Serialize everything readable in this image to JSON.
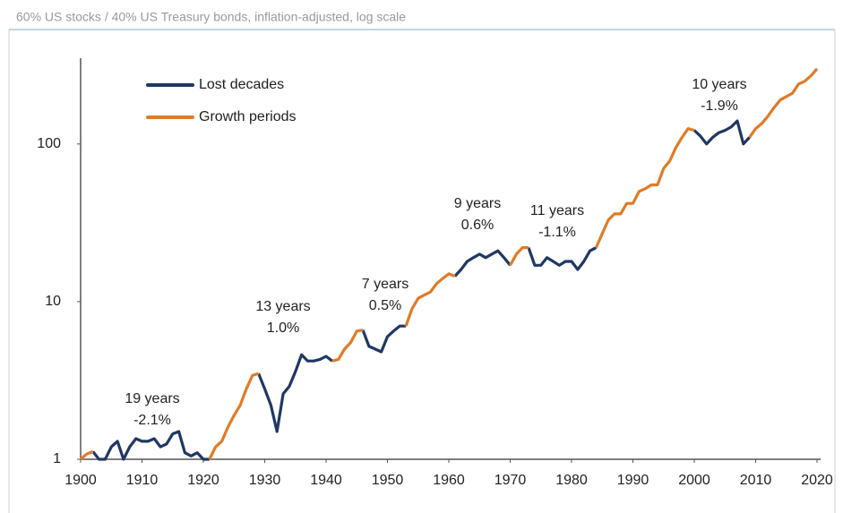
{
  "chart_data": {
    "type": "line",
    "title": "60% US stocks / 40% US Treasury bonds, inflation-adjusted, log scale",
    "log_scale": true,
    "grid": false,
    "legend": "upper-left",
    "xlim": [
      1900,
      2020
    ],
    "ylim": [
      1,
      350
    ],
    "xticks": [
      1900,
      1910,
      1920,
      1930,
      1940,
      1950,
      1960,
      1970,
      1980,
      1990,
      2000,
      2010,
      2020
    ],
    "yticks": [
      1,
      10,
      100
    ],
    "x": [
      1900,
      1901,
      1902,
      1903,
      1904,
      1905,
      1906,
      1907,
      1908,
      1909,
      1910,
      1911,
      1912,
      1913,
      1914,
      1915,
      1916,
      1917,
      1918,
      1919,
      1920,
      1921,
      1922,
      1923,
      1924,
      1925,
      1926,
      1927,
      1928,
      1929,
      1930,
      1931,
      1932,
      1933,
      1934,
      1935,
      1936,
      1937,
      1938,
      1939,
      1940,
      1941,
      1942,
      1943,
      1944,
      1945,
      1946,
      1947,
      1948,
      1949,
      1950,
      1951,
      1952,
      1953,
      1954,
      1955,
      1956,
      1957,
      1958,
      1959,
      1960,
      1961,
      1962,
      1963,
      1964,
      1965,
      1966,
      1967,
      1968,
      1969,
      1970,
      1971,
      1972,
      1973,
      1974,
      1975,
      1976,
      1977,
      1978,
      1979,
      1980,
      1981,
      1982,
      1983,
      1984,
      1985,
      1986,
      1987,
      1988,
      1989,
      1990,
      1991,
      1992,
      1993,
      1994,
      1995,
      1996,
      1997,
      1998,
      1999,
      2000,
      2001,
      2002,
      2003,
      2004,
      2005,
      2006,
      2007,
      2008,
      2009,
      2010,
      2011,
      2012,
      2013,
      2014,
      2015,
      2016,
      2017,
      2018,
      2019,
      2020
    ],
    "series": [
      {
        "name": "Lost decades",
        "color": "#1f3864",
        "values": [
          null,
          null,
          1.12,
          1.0,
          1.0,
          1.2,
          1.3,
          1.0,
          1.2,
          1.35,
          1.3,
          1.3,
          1.35,
          1.2,
          1.25,
          1.45,
          1.5,
          1.1,
          1.05,
          1.1,
          1.0,
          1.0,
          null,
          null,
          null,
          null,
          null,
          null,
          null,
          3.5,
          2.8,
          2.2,
          1.5,
          2.6,
          2.9,
          3.6,
          4.6,
          4.2,
          4.2,
          4.3,
          4.5,
          4.2,
          null,
          null,
          null,
          null,
          6.6,
          5.2,
          5.0,
          4.8,
          6.0,
          6.5,
          7.0,
          7.0,
          null,
          null,
          null,
          null,
          null,
          null,
          null,
          14.5,
          16,
          18,
          19,
          20,
          19,
          20,
          21,
          19,
          17,
          null,
          null,
          22,
          17,
          17,
          19,
          18,
          17,
          18,
          18,
          16,
          18,
          21,
          22,
          null,
          null,
          null,
          null,
          null,
          null,
          null,
          null,
          null,
          null,
          null,
          null,
          null,
          null,
          null,
          122,
          112,
          100,
          110,
          118,
          122,
          128,
          140,
          100,
          110,
          null,
          null,
          null,
          null,
          null,
          null,
          null,
          null,
          null,
          null,
          null
        ]
      },
      {
        "name": "Growth periods",
        "color": "#e07b28",
        "values": [
          1.0,
          1.08,
          1.12,
          null,
          null,
          null,
          null,
          null,
          null,
          null,
          null,
          null,
          null,
          null,
          null,
          null,
          null,
          null,
          null,
          null,
          null,
          1.0,
          1.2,
          1.3,
          1.6,
          1.9,
          2.2,
          2.8,
          3.4,
          3.5,
          null,
          null,
          null,
          null,
          null,
          null,
          null,
          null,
          null,
          null,
          null,
          4.2,
          4.3,
          5.0,
          5.5,
          6.5,
          6.6,
          null,
          null,
          null,
          null,
          null,
          null,
          7.0,
          9.0,
          10.5,
          11,
          11.5,
          13,
          14,
          15,
          14.5,
          null,
          null,
          null,
          null,
          null,
          null,
          null,
          null,
          17,
          20,
          22,
          22,
          null,
          null,
          null,
          null,
          null,
          null,
          null,
          null,
          null,
          null,
          22,
          27,
          33,
          36,
          36,
          42,
          42,
          50,
          52,
          55,
          55,
          70,
          78,
          95,
          110,
          125,
          122,
          null,
          null,
          null,
          null,
          null,
          null,
          null,
          null,
          110,
          125,
          135,
          150,
          170,
          190,
          200,
          210,
          240,
          250,
          270,
          300
        ]
      }
    ],
    "annotations": [
      {
        "title": "19 years",
        "rate": "-2.1%"
      },
      {
        "title": "13 years",
        "rate": "1.0%"
      },
      {
        "title": "7 years",
        "rate": "0.5%"
      },
      {
        "title": "9 years",
        "rate": "0.6%"
      },
      {
        "title": "11 years",
        "rate": "-1.1%"
      },
      {
        "title": "10 years",
        "rate": "-1.9%"
      }
    ]
  }
}
